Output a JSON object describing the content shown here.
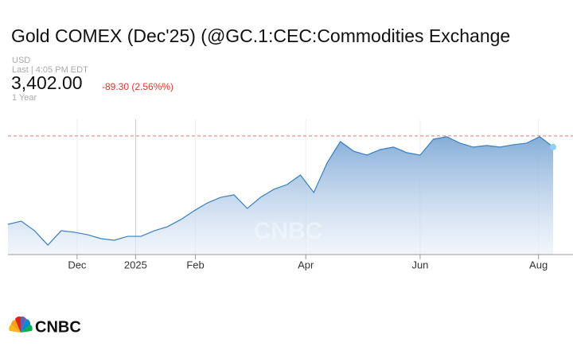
{
  "chart_data": {
    "type": "area",
    "title": "Gold COMEX (Dec'25) (@GC.1:CEC:Commodities Exchange",
    "currency": "USD",
    "last_time": "Last | 4:05 PM EDT",
    "price": "3,402.00",
    "change": "-89.30 (2.56%%)",
    "range": "1 Year",
    "watermark": "CNBC",
    "brand": "CNBC",
    "color": "#3a7fc1",
    "reference_line": 3491.3,
    "reference_color": "#e07a7a",
    "values": [
      2775,
      2801,
      2723,
      2607,
      2723,
      2711,
      2691,
      2659,
      2646,
      2678,
      2678,
      2723,
      2756,
      2814,
      2885,
      2949,
      2994,
      3014,
      2904,
      2994,
      3059,
      3098,
      3175,
      3033,
      3272,
      3446,
      3368,
      3336,
      3381,
      3401,
      3356,
      3336,
      3465,
      3485,
      3433,
      3401,
      3414,
      3401,
      3420,
      3433,
      3485,
      3402
    ],
    "xlim": [
      0,
      41
    ],
    "xticks": [
      {
        "value": 5.2,
        "label": "Dec"
      },
      {
        "value": 9.6,
        "label": "2025"
      },
      {
        "value": 14.1,
        "label": "Feb"
      },
      {
        "value": 22.4,
        "label": "Apr"
      },
      {
        "value": 31.0,
        "label": "Jun"
      },
      {
        "value": 39.9,
        "label": "Aug"
      }
    ],
    "ylim": [
      2530,
      3626
    ]
  }
}
